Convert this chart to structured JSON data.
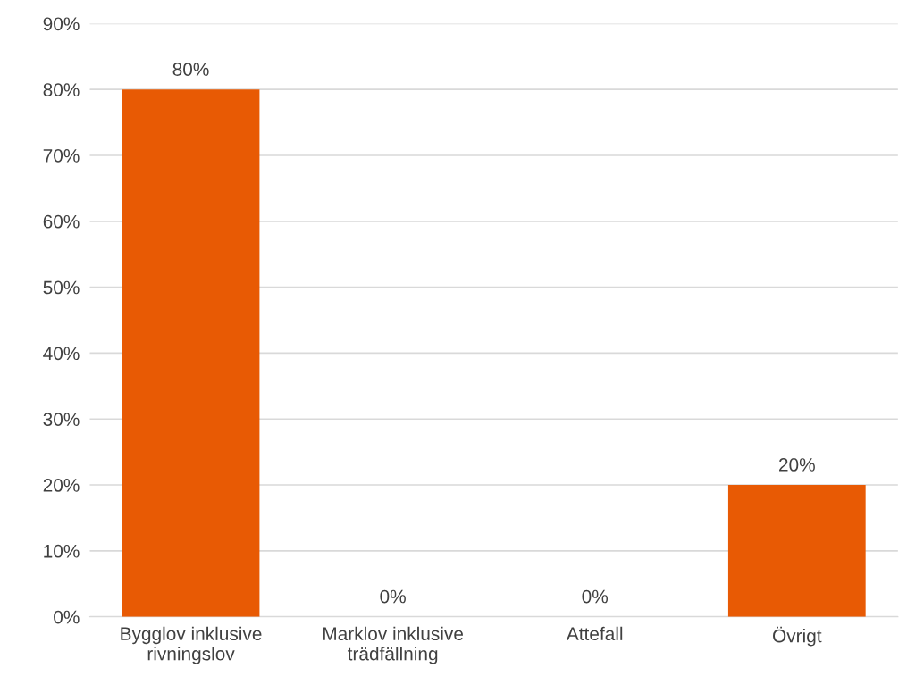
{
  "chart_data": {
    "type": "bar",
    "categories": [
      "Bygglov inklusive\nrivningslov",
      "Marklov inklusive\nträdfällning",
      "Attefall",
      "Övrigt"
    ],
    "values": [
      80,
      0,
      0,
      20
    ],
    "value_labels": [
      "80%",
      "0%",
      "0%",
      "20%"
    ],
    "color": "#e85a04",
    "ylim": [
      0,
      90
    ],
    "yticks": [
      {
        "value": 0,
        "label": "0%"
      },
      {
        "value": 10,
        "label": "10%"
      },
      {
        "value": 20,
        "label": "20%"
      },
      {
        "value": 30,
        "label": "30%"
      },
      {
        "value": 40,
        "label": "40%"
      },
      {
        "value": 50,
        "label": "50%"
      },
      {
        "value": 60,
        "label": "60%"
      },
      {
        "value": 70,
        "label": "70%"
      },
      {
        "value": 80,
        "label": "80%"
      },
      {
        "value": 90,
        "label": "90%"
      }
    ],
    "grid": "y"
  }
}
